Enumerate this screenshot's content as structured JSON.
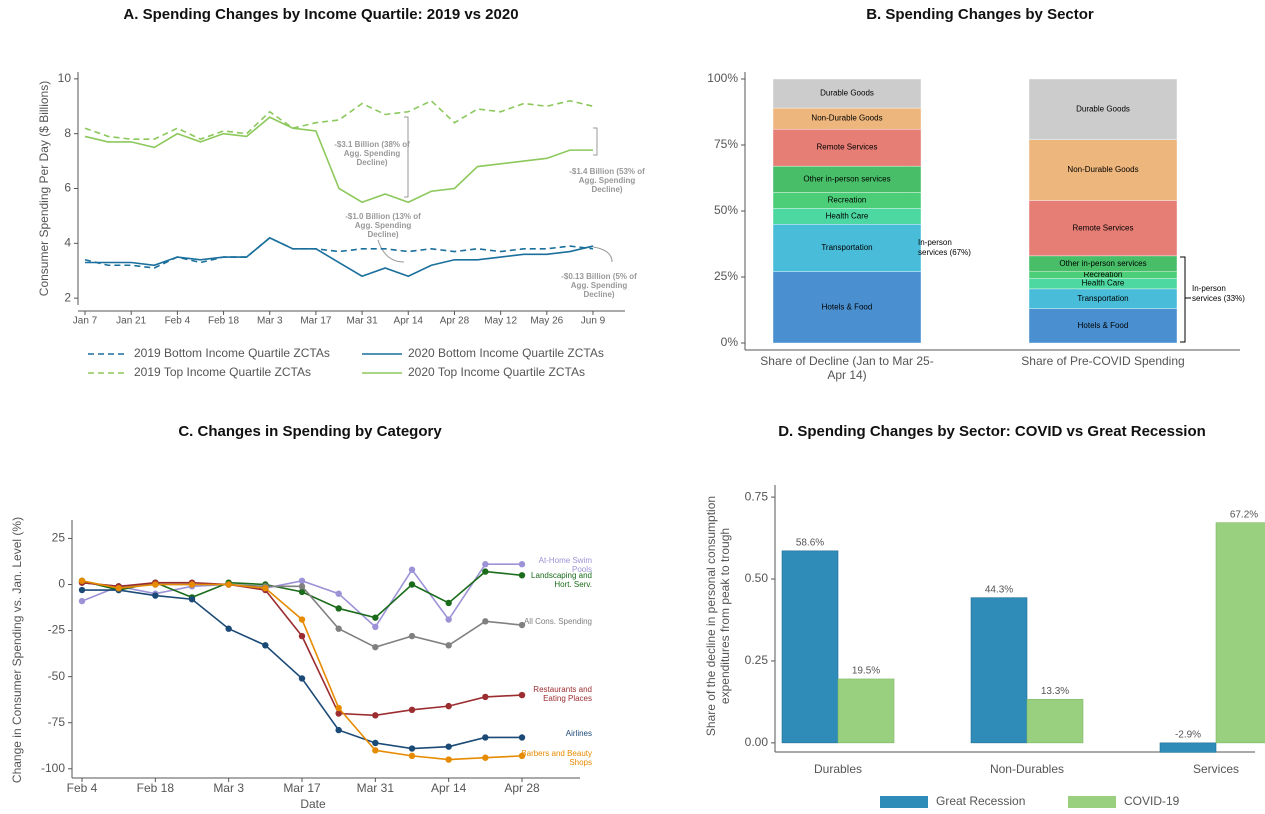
{
  "chart_data": [
    {
      "type": "line",
      "title": "A. Spending Changes by Income Quartile: 2019 vs 2020",
      "ylabel": "Consumer Spending Per Day ($ Billions)",
      "categories": [
        "Jan 7",
        null,
        "Jan 21",
        null,
        "Feb 4",
        null,
        "Feb 18",
        null,
        "Mar 3",
        null,
        "Mar 17",
        null,
        "Mar 31",
        null,
        "Apr 14",
        null,
        "Apr 28",
        null,
        "May 12",
        null,
        "May 26",
        null,
        "Jun 9"
      ],
      "ylim": [
        1.75,
        10.25
      ],
      "yticks": [
        2,
        4,
        6,
        8,
        10
      ],
      "series": [
        {
          "name": "2019 Bottom Income Quartile ZCTAs",
          "color": "#1a6f9c",
          "line_style": "dashed",
          "values": [
            3.4,
            3.2,
            3.2,
            3.1,
            3.5,
            3.3,
            3.5,
            3.5,
            4.2,
            3.8,
            3.8,
            3.7,
            3.8,
            3.8,
            3.7,
            3.8,
            3.7,
            3.8,
            3.7,
            3.8,
            3.8,
            3.9,
            3.8
          ]
        },
        {
          "name": "2020 Bottom Income Quartile ZCTAs",
          "color": "#1a6f9c",
          "line_style": "solid",
          "values": [
            3.3,
            3.3,
            3.3,
            3.2,
            3.5,
            3.4,
            3.5,
            3.5,
            4.2,
            3.8,
            3.8,
            3.3,
            2.8,
            3.1,
            2.8,
            3.2,
            3.4,
            3.4,
            3.5,
            3.6,
            3.6,
            3.7,
            3.9
          ]
        },
        {
          "name": "2019 Top Income Quartile ZCTAs",
          "color": "#8cc85c",
          "line_style": "dashed",
          "values": [
            8.2,
            7.9,
            7.8,
            7.8,
            8.2,
            7.8,
            8.1,
            8.0,
            8.8,
            8.2,
            8.4,
            8.5,
            9.1,
            8.7,
            8.8,
            9.2,
            8.4,
            8.9,
            8.8,
            9.1,
            9.0,
            9.2,
            9.0
          ]
        },
        {
          "name": "2020 Top Income Quartile ZCTAs",
          "color": "#8cc85c",
          "line_style": "solid",
          "values": [
            7.9,
            7.7,
            7.7,
            7.5,
            8.0,
            7.7,
            8.0,
            7.9,
            8.6,
            8.2,
            8.1,
            6.0,
            5.5,
            5.8,
            5.5,
            5.9,
            6.0,
            6.8,
            6.9,
            7.0,
            7.1,
            7.4,
            7.4
          ]
        }
      ],
      "annotations": [
        "-$3.1 Billion (38% of Agg. Spending Decline)",
        "-$1.4 Billion (53% of Agg. Spending Decline)",
        "-$1.0 Billion (13% of Agg. Spending Decline)",
        "-$0.13 Billion (5% of Agg. Spending Decline)"
      ]
    },
    {
      "type": "bar",
      "stacked": true,
      "title": "B. Spending Changes by Sector",
      "categories": [
        "Share of Decline (Jan to Mar 25-Apr 14)",
        "Share of Pre-COVID Spending"
      ],
      "ylim": [
        0,
        100
      ],
      "yticks": [
        {
          "value": 0,
          "label": "0%"
        },
        {
          "value": 25,
          "label": "25%"
        },
        {
          "value": 50,
          "label": "50%"
        },
        {
          "value": 75,
          "label": "75%"
        },
        {
          "value": 100,
          "label": "100%"
        }
      ],
      "series": [
        {
          "name": "Hotels & Food",
          "color": "#4a90d0",
          "values": [
            27,
            13
          ]
        },
        {
          "name": "Transportation",
          "color": "#48bcd8",
          "values": [
            18,
            7.5
          ]
        },
        {
          "name": "Health Care",
          "color": "#4cd8a0",
          "values": [
            6,
            4
          ]
        },
        {
          "name": "Recreation",
          "color": "#4cce78",
          "values": [
            6,
            2.5
          ]
        },
        {
          "name": "Other in-person services",
          "color": "#48be68",
          "values": [
            10,
            6
          ]
        },
        {
          "name": "Remote Services",
          "color": "#e67e76",
          "values": [
            14,
            21
          ]
        },
        {
          "name": "Non-Durable Goods",
          "color": "#edb67c",
          "values": [
            8,
            23
          ]
        },
        {
          "name": "Durable Goods",
          "color": "#cccccc",
          "values": [
            11,
            23
          ]
        }
      ],
      "annotations": [
        "In-person services (67%)",
        "In-person services (33%)"
      ]
    },
    {
      "type": "line",
      "title": "C. Changes in Spending by Category",
      "xlabel": "Date",
      "ylabel": "Change in Consumer Spending vs. Jan. Level (%)",
      "categories": [
        "Feb 4",
        null,
        "Feb 18",
        null,
        "Mar 3",
        null,
        "Mar 17",
        null,
        "Mar 31",
        null,
        "Apr 14",
        null,
        "Apr 28"
      ],
      "ylim": [
        -105,
        35
      ],
      "yticks": [
        25,
        0,
        -25,
        -50,
        -75,
        -100
      ],
      "series": [
        {
          "name": "At-Home Swim Pools",
          "color": "#9b93d6",
          "values": [
            -9,
            -1,
            -5,
            -1,
            0,
            -2,
            2,
            -5,
            -23,
            8,
            -19,
            11,
            11
          ]
        },
        {
          "name": "Landscaping and Hort. Serv.",
          "color": "#1a6b1a",
          "values": [
            2,
            -3,
            1,
            -7,
            1,
            0,
            -4,
            -13,
            -18,
            0,
            -10,
            7,
            5
          ]
        },
        {
          "name": "All Cons. Spending",
          "color": "#808080",
          "values": [
            1,
            -1,
            0,
            0,
            0,
            -1,
            -1,
            -24,
            -34,
            -28,
            -33,
            -20,
            -22
          ]
        },
        {
          "name": "Restaurants and Eating Places",
          "color": "#9b2d30",
          "values": [
            1,
            -1,
            1,
            1,
            0,
            -3,
            -28,
            -70,
            -71,
            -68,
            -66,
            -61,
            -60
          ]
        },
        {
          "name": "Airlines",
          "color": "#1c4a77",
          "values": [
            -3,
            -3,
            -6,
            -8,
            -24,
            -33,
            -51,
            -79,
            -86,
            -89,
            -88,
            -83,
            -83
          ]
        },
        {
          "name": "Barbers and Beauty Shops",
          "color": "#e68a00",
          "values": [
            2,
            -2,
            0,
            0,
            0,
            -2,
            -19,
            -67,
            -90,
            -93,
            -95,
            -94,
            -93
          ]
        }
      ]
    },
    {
      "type": "bar",
      "stacked": false,
      "title": "D. Spending Changes by Sector: COVID vs Great Recession",
      "ylabel": "Share of the decline in personal consumption expenditures from peak to trough",
      "categories": [
        "Durables",
        "Non-Durables",
        "Services"
      ],
      "ylim": [
        -0.034,
        0.79
      ],
      "yticks": [
        {
          "value": 0,
          "label": "0.00"
        },
        {
          "value": 0.25,
          "label": "0.25"
        },
        {
          "value": 0.5,
          "label": "0.50"
        },
        {
          "value": 0.75,
          "label": "0.75"
        }
      ],
      "series": [
        {
          "name": "Great Recession",
          "color": "#2f8cb8",
          "values": [
            0.586,
            0.443,
            -0.029
          ],
          "value_labels": [
            "58.6%",
            "44.3%",
            "-2.9%"
          ]
        },
        {
          "name": "COVID-19",
          "color": "#99d07f",
          "values": [
            0.195,
            0.133,
            0.672
          ],
          "value_labels": [
            "19.5%",
            "13.3%",
            "67.2%"
          ]
        }
      ]
    }
  ]
}
